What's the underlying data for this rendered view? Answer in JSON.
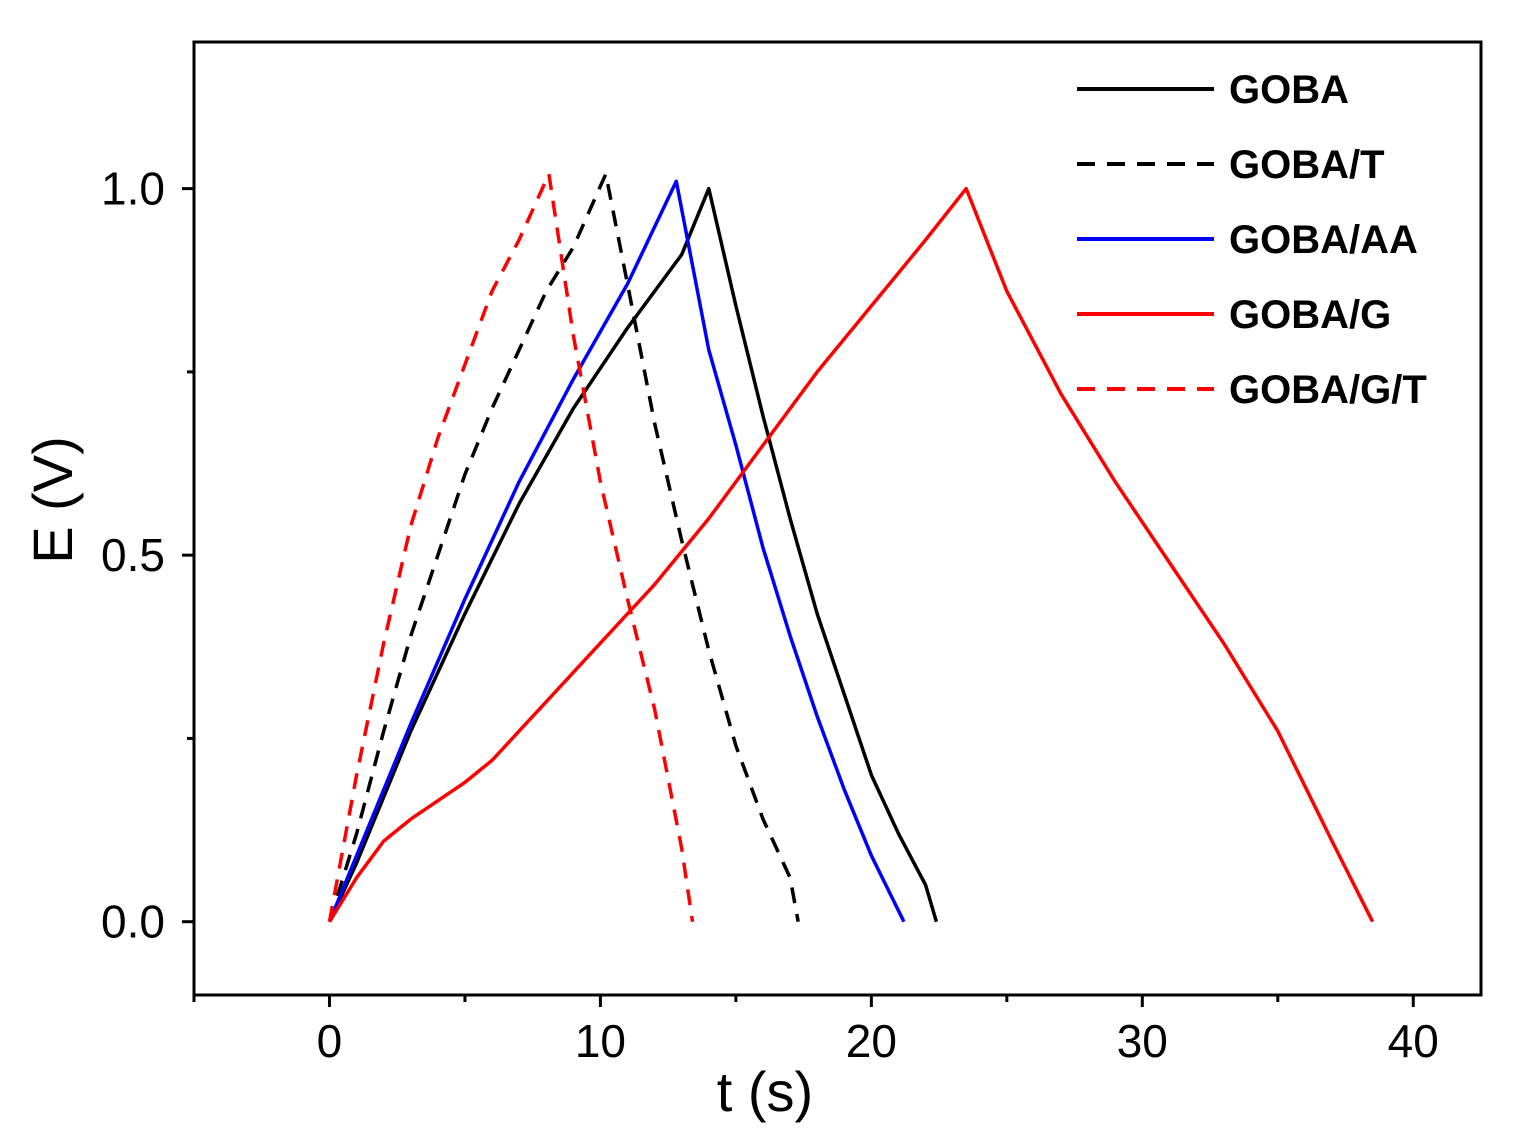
{
  "chart_data": {
    "type": "line",
    "title": "",
    "xlabel": "t (s)",
    "ylabel": "E (V)",
    "xlim": [
      -5,
      42.5
    ],
    "ylim": [
      -0.1,
      1.2
    ],
    "xticks": [
      0,
      10,
      20,
      30,
      40
    ],
    "xtick_labels": [
      "0",
      "10",
      "20",
      "30",
      "40"
    ],
    "xminor": [
      -5,
      5,
      15,
      25,
      35
    ],
    "yticks": [
      0.0,
      0.5,
      1.0
    ],
    "ytick_labels": [
      "0.0",
      "0.5",
      "1.0"
    ],
    "yminor": [
      0.25,
      0.75
    ],
    "grid": false,
    "legend_position": "top-right",
    "series": [
      {
        "name": "GOBA",
        "color": "#000000",
        "style": "solid",
        "points": [
          [
            0,
            0
          ],
          [
            1,
            0.08
          ],
          [
            3,
            0.26
          ],
          [
            5,
            0.42
          ],
          [
            7,
            0.57
          ],
          [
            9,
            0.7
          ],
          [
            11,
            0.81
          ],
          [
            13,
            0.91
          ],
          [
            14,
            1.0
          ],
          [
            15,
            0.84
          ],
          [
            16,
            0.69
          ],
          [
            17,
            0.55
          ],
          [
            18,
            0.42
          ],
          [
            19,
            0.31
          ],
          [
            20,
            0.2
          ],
          [
            21,
            0.12
          ],
          [
            22,
            0.05
          ],
          [
            22.4,
            0.0
          ]
        ]
      },
      {
        "name": "GOBA/T",
        "color": "#000000",
        "style": "dashed",
        "points": [
          [
            0,
            0
          ],
          [
            1,
            0.12
          ],
          [
            2,
            0.26
          ],
          [
            3,
            0.39
          ],
          [
            4,
            0.5
          ],
          [
            5,
            0.61
          ],
          [
            6,
            0.7
          ],
          [
            7,
            0.78
          ],
          [
            8,
            0.86
          ],
          [
            9,
            0.92
          ],
          [
            10.2,
            1.02
          ],
          [
            11,
            0.87
          ],
          [
            12,
            0.68
          ],
          [
            13,
            0.52
          ],
          [
            14,
            0.37
          ],
          [
            15,
            0.24
          ],
          [
            16,
            0.14
          ],
          [
            17,
            0.06
          ],
          [
            17.3,
            0.0
          ]
        ]
      },
      {
        "name": "GOBA/AA",
        "color": "#0000ff",
        "style": "solid",
        "points": [
          [
            0,
            0
          ],
          [
            1,
            0.09
          ],
          [
            3,
            0.27
          ],
          [
            5,
            0.44
          ],
          [
            7,
            0.6
          ],
          [
            9,
            0.74
          ],
          [
            11,
            0.87
          ],
          [
            12.8,
            1.01
          ],
          [
            14,
            0.78
          ],
          [
            15,
            0.65
          ],
          [
            16,
            0.51
          ],
          [
            17,
            0.39
          ],
          [
            18,
            0.28
          ],
          [
            19,
            0.18
          ],
          [
            20,
            0.09
          ],
          [
            21.2,
            0.0
          ]
        ]
      },
      {
        "name": "GOBA/G",
        "color": "#ff0000",
        "style": "solid",
        "points": [
          [
            0,
            0
          ],
          [
            1,
            0.06
          ],
          [
            2,
            0.11
          ],
          [
            3,
            0.14
          ],
          [
            4,
            0.165
          ],
          [
            5,
            0.19
          ],
          [
            6,
            0.22
          ],
          [
            7,
            0.26
          ],
          [
            8,
            0.3
          ],
          [
            10,
            0.38
          ],
          [
            12,
            0.46
          ],
          [
            14,
            0.55
          ],
          [
            16,
            0.65
          ],
          [
            18,
            0.75
          ],
          [
            20,
            0.84
          ],
          [
            22,
            0.93
          ],
          [
            23.5,
            1.0
          ],
          [
            25,
            0.86
          ],
          [
            27,
            0.72
          ],
          [
            29,
            0.6
          ],
          [
            31,
            0.49
          ],
          [
            33,
            0.38
          ],
          [
            35,
            0.26
          ],
          [
            37,
            0.11
          ],
          [
            38.5,
            0.0
          ]
        ]
      },
      {
        "name": "GOBA/G/T",
        "color": "#ff0000",
        "style": "dashed",
        "points": [
          [
            0,
            0
          ],
          [
            0.5,
            0.1
          ],
          [
            1,
            0.2
          ],
          [
            2,
            0.38
          ],
          [
            3,
            0.54
          ],
          [
            4,
            0.66
          ],
          [
            5,
            0.76
          ],
          [
            6,
            0.86
          ],
          [
            7,
            0.93
          ],
          [
            8.1,
            1.02
          ],
          [
            9,
            0.8
          ],
          [
            10,
            0.6
          ],
          [
            11,
            0.44
          ],
          [
            12,
            0.29
          ],
          [
            13,
            0.1
          ],
          [
            13.4,
            0.0
          ]
        ]
      }
    ]
  }
}
